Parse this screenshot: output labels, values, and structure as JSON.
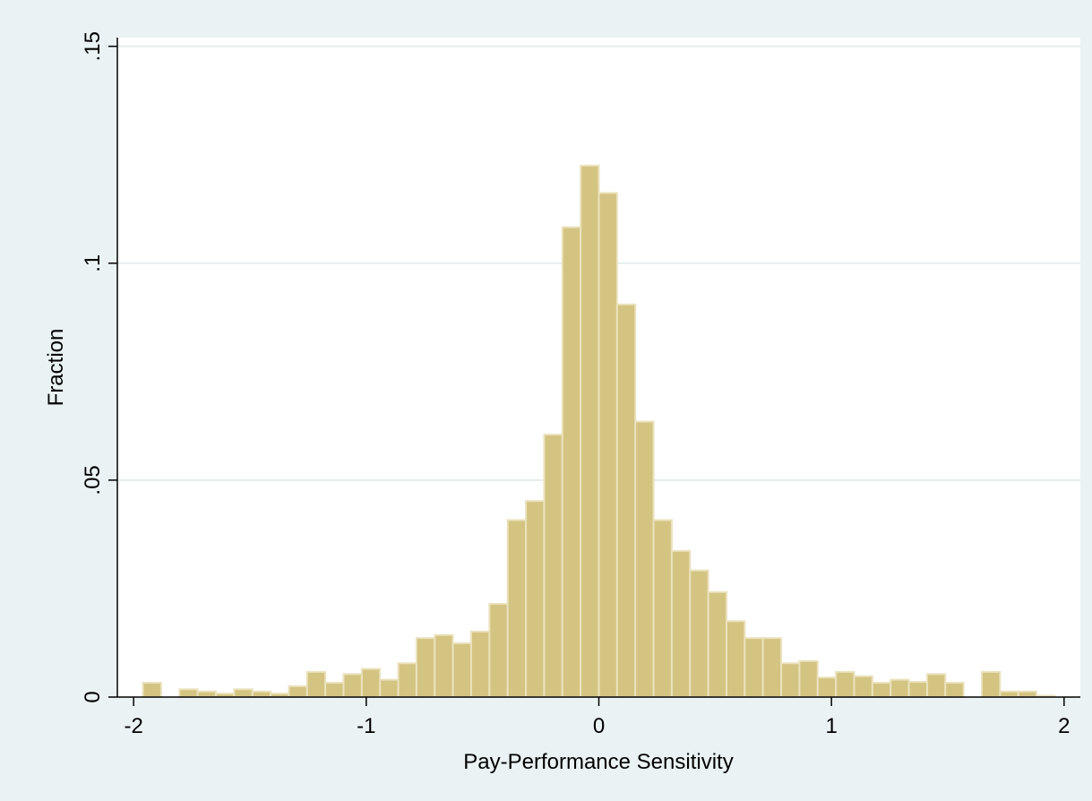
{
  "chart_data": {
    "type": "bar",
    "title": "",
    "xlabel": "Pay-Performance Sensitivity",
    "ylabel": "Fraction",
    "xlim": [
      -2.07,
      2.07
    ],
    "ylim": [
      0,
      0.152
    ],
    "bin_start": -1.96,
    "bin_width": 0.0784,
    "values": [
      0.0033,
      0.0,
      0.0018,
      0.0013,
      0.0008,
      0.0018,
      0.0013,
      0.0008,
      0.0025,
      0.0058,
      0.0033,
      0.0053,
      0.0065,
      0.004,
      0.0078,
      0.0136,
      0.0143,
      0.0124,
      0.0151,
      0.0215,
      0.0408,
      0.0452,
      0.0605,
      0.1083,
      0.1225,
      0.1162,
      0.0905,
      0.0635,
      0.0408,
      0.0337,
      0.0292,
      0.0242,
      0.0175,
      0.0136,
      0.0136,
      0.0078,
      0.0083,
      0.0045,
      0.0058,
      0.0048,
      0.0033,
      0.004,
      0.0035,
      0.0053,
      0.0033,
      0.0,
      0.0058,
      0.0013,
      0.0013,
      0.0003
    ],
    "x_ticks": [
      -2,
      -1,
      0,
      1,
      2
    ],
    "x_tick_labels": [
      "-2",
      "-1",
      "0",
      "1",
      "2"
    ],
    "y_ticks": [
      0,
      0.05,
      0.1,
      0.15
    ],
    "y_tick_labels": [
      "0",
      ".05",
      ".1",
      ".15"
    ],
    "grid": "horizontal",
    "colors": {
      "background": "#eaf2f3",
      "plot_background": "#ffffff",
      "bar_fill": "#d4c482",
      "bar_edge": "#ebe2bd",
      "grid": "#e5eded",
      "axis": "#000000"
    }
  }
}
